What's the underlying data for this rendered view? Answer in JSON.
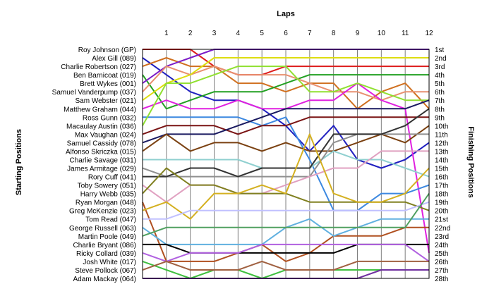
{
  "chart_data": {
    "type": "line",
    "title": "",
    "xlabel": "Laps",
    "ylabel_left": "Starting Positions",
    "ylabel_right": "Finishing Positions",
    "x": [
      0,
      1,
      2,
      3,
      4,
      5,
      6,
      7,
      8,
      9,
      10,
      11,
      12
    ],
    "x_tick_labels": [
      "1",
      "2",
      "3",
      "4",
      "5",
      "6",
      "7",
      "8",
      "9",
      "10",
      "11",
      "12"
    ],
    "y_start_labels": [
      "Roy Johnson (GP)",
      "Alex Gill (089)",
      "Charlie Robertson (027)",
      "Ben Barnicoat (019)",
      "Brett Wykes (001)",
      "Samuel Vanderpump (037)",
      "Sam Webster (021)",
      "Matthew Graham (044)",
      "Ross Gunn (032)",
      "Macaulay Austin (036)",
      "Max Vaughan (024)",
      "Samuel Cassidy (078)",
      "Alfonso Skriczka (015)",
      "Charlie Savage (031)",
      "James Armitage (029)",
      "Rory Cuff (041)",
      "Toby Sowery (051)",
      "Harry Webb (035)",
      "Ryan Morgan (048)",
      "Greg McKenzie (023)",
      "Tom Read (047)",
      "George Russell (063)",
      "Martin Poole (049)",
      "Charlie Bryant (086)",
      "Ricky Collard (039)",
      "Josh White (017)",
      "Steve Pollock (067)",
      "Adam Mackay (064)"
    ],
    "y_finish_labels": [
      "1st",
      "2nd",
      "3rd",
      "4th",
      "5th",
      "6th",
      "7th",
      "8th",
      "9th",
      "10th",
      "11th",
      "12th",
      "13th",
      "14th",
      "15th",
      "16th",
      "17th",
      "18th",
      "19th",
      "20th",
      "21st",
      "22nd",
      "23rd",
      "24th",
      "25th",
      "26th",
      "27th",
      "28th"
    ],
    "ylim": [
      1,
      28
    ],
    "grid": true,
    "series": [
      {
        "color": "#dd1c1c",
        "values": [
          1,
          1,
          1,
          3,
          4,
          4,
          3,
          3,
          3,
          3,
          3,
          3,
          3
        ]
      },
      {
        "color": "#2020c0",
        "values": [
          2,
          4,
          6,
          7,
          7,
          8,
          10,
          13,
          10,
          14,
          15,
          14,
          12
        ]
      },
      {
        "color": "#d07020",
        "values": [
          3,
          2,
          3,
          3,
          5,
          5,
          6,
          5,
          5,
          8,
          6,
          5,
          8
        ]
      },
      {
        "color": "#22a022",
        "values": [
          4,
          8,
          7,
          6,
          6,
          6,
          5,
          4,
          4,
          4,
          4,
          4,
          4
        ]
      },
      {
        "color": "#7c1cc8",
        "values": [
          5,
          3,
          2,
          1,
          1,
          1,
          1,
          1,
          1,
          1,
          1,
          1,
          1
        ]
      },
      {
        "color": "#e89070",
        "values": [
          6,
          3,
          4,
          3,
          4,
          4,
          4,
          5,
          6,
          6,
          7,
          6,
          6
        ]
      },
      {
        "color": "#dddd10",
        "values": [
          7,
          5,
          4,
          2,
          2,
          2,
          2,
          2,
          2,
          2,
          2,
          2,
          2
        ]
      },
      {
        "color": "#e020e0",
        "values": [
          8,
          7,
          8,
          8,
          7,
          8,
          8,
          7,
          7,
          5,
          7,
          8,
          25
        ]
      },
      {
        "color": "#3c88e0",
        "values": [
          9,
          9,
          9,
          9,
          9,
          10,
          9,
          14,
          20,
          20,
          18,
          18,
          17
        ]
      },
      {
        "color": "#90e030",
        "values": [
          10,
          5,
          5,
          4,
          3,
          3,
          3,
          6,
          6,
          5,
          6,
          7,
          7
        ]
      },
      {
        "color": "#7a1414",
        "values": [
          11,
          10,
          10,
          10,
          11,
          10,
          10,
          9,
          9,
          9,
          9,
          9,
          9
        ]
      },
      {
        "color": "#1a1a60",
        "values": [
          12,
          11,
          11,
          11,
          10,
          9,
          8,
          8,
          8,
          8,
          8,
          8,
          7
        ]
      },
      {
        "color": "#7a4010",
        "values": [
          13,
          11,
          13,
          12,
          12,
          13,
          12,
          13,
          13,
          12,
          11,
          12,
          10
        ]
      },
      {
        "color": "#90d0d0",
        "values": [
          14,
          14,
          14,
          14,
          14,
          15,
          15,
          15,
          13,
          14,
          14,
          15,
          16
        ]
      },
      {
        "color": "#909090",
        "values": [
          15,
          16,
          16,
          16,
          16,
          16,
          16,
          16,
          12,
          11,
          11,
          11,
          11
        ]
      },
      {
        "color": "#333333",
        "values": [
          16,
          16,
          15,
          15,
          16,
          15,
          15,
          15,
          11,
          11,
          11,
          10,
          8
        ]
      },
      {
        "color": "#e0a0c0",
        "values": [
          17,
          19,
          17,
          17,
          18,
          18,
          17,
          16,
          15,
          15,
          13,
          13,
          13
        ]
      },
      {
        "color": "#808020",
        "values": [
          18,
          15,
          17,
          17,
          18,
          18,
          18,
          19,
          19,
          19,
          19,
          19,
          20
        ]
      },
      {
        "color": "#b05020",
        "values": [
          19,
          26,
          26,
          26,
          25,
          24,
          26,
          25,
          23,
          23,
          23,
          22,
          22
        ]
      },
      {
        "color": "#d4b020",
        "values": [
          20,
          19,
          21,
          18,
          18,
          17,
          18,
          11,
          18,
          19,
          19,
          18,
          15
        ]
      },
      {
        "color": "#c0c0ff",
        "values": [
          21,
          21,
          20,
          20,
          20,
          20,
          20,
          20,
          20,
          20,
          20,
          20,
          19
        ]
      },
      {
        "color": "#60b0e0",
        "values": [
          22,
          24,
          24,
          24,
          24,
          24,
          22,
          21,
          23,
          22,
          21,
          21,
          21
        ]
      },
      {
        "color": "#50a060",
        "values": [
          23,
          22,
          22,
          22,
          22,
          22,
          22,
          22,
          22,
          22,
          22,
          22,
          18
        ]
      },
      {
        "color": "#000000",
        "values": [
          24,
          24,
          25,
          25,
          25,
          25,
          25,
          25,
          25,
          24,
          24,
          24,
          24
        ]
      },
      {
        "color": "#b060e0",
        "values": [
          25,
          26,
          25,
          25,
          25,
          24,
          24,
          24,
          24,
          24,
          24,
          24,
          26
        ]
      },
      {
        "color": "#40c040",
        "values": [
          26,
          27,
          28,
          27,
          27,
          28,
          27,
          27,
          27,
          27,
          27,
          27,
          27
        ]
      },
      {
        "color": "#a06040",
        "values": [
          27,
          26,
          27,
          27,
          27,
          26,
          27,
          27,
          27,
          26,
          26,
          26,
          26
        ]
      },
      {
        "color": "#7030a0",
        "values": [
          28,
          28,
          28,
          28,
          28,
          28,
          28,
          28,
          28,
          28,
          27,
          27,
          27
        ]
      }
    ]
  }
}
